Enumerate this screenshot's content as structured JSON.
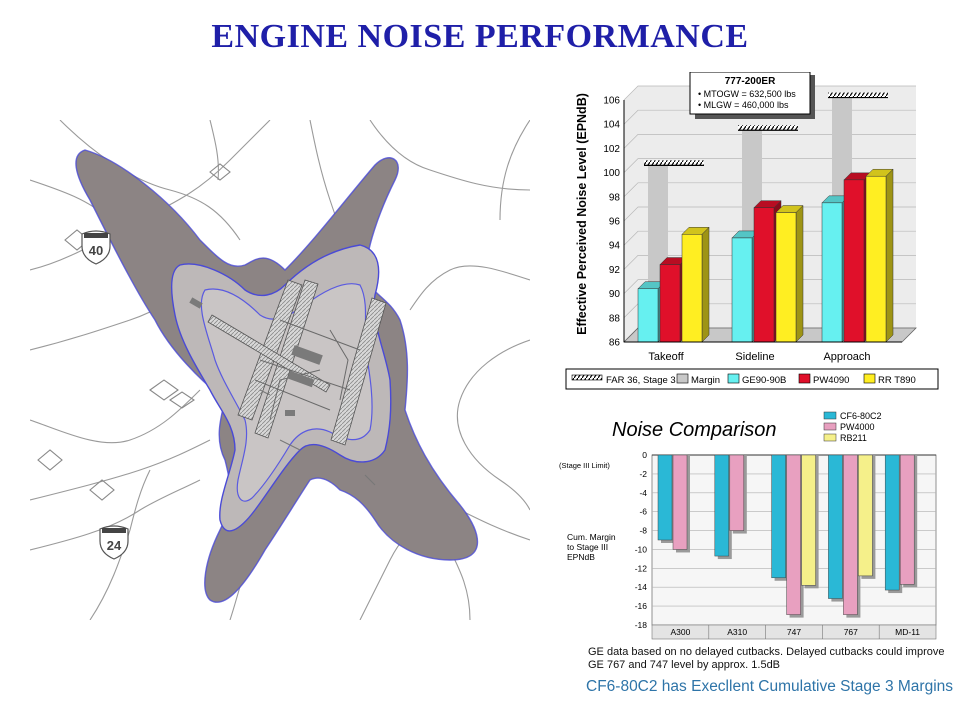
{
  "page": {
    "title": "ENGINE NOISE PERFORMANCE",
    "footnote": "GE data based on no delayed cutbacks.  Delayed cutbacks could improve GE 767 and 747 level by approx. 1.5dB",
    "tagline": "CF6-80C2 has Execllent Cumulative Stage 3 Margins"
  },
  "map": {
    "route_shields": [
      "40",
      "24"
    ],
    "colors": {
      "contour_outer": "#8c8484",
      "contour_inner": "#bdb8b8",
      "contour_edge": "#4a4ad6"
    }
  },
  "chart_data": [
    {
      "type": "bar",
      "ylabel": "Effective Perceived Noise Level (EPNdB)",
      "ylim": [
        86,
        106
      ],
      "yticks": [
        86,
        88,
        90,
        92,
        94,
        96,
        98,
        100,
        102,
        104,
        106
      ],
      "categories": [
        "Takeoff",
        "Sideline",
        "Approach"
      ],
      "far36_limits": [
        100.6,
        103.5,
        106.2
      ],
      "series": [
        {
          "name": "GE90-90B",
          "color": "#66f0f0",
          "values": [
            90.4,
            94.6,
            97.5
          ]
        },
        {
          "name": "PW4090",
          "color": "#e0102a",
          "values": [
            92.4,
            97.1,
            99.4
          ]
        },
        {
          "name": "RR T890",
          "color": "#ffee22",
          "values": [
            94.9,
            96.7,
            99.7
          ]
        }
      ],
      "legend": [
        "FAR 36, Stage 3",
        "Margin",
        "GE90-90B",
        "PW4090",
        "RR T890"
      ],
      "legend_placement": "bottom",
      "annotation": {
        "title": "777-200ER",
        "lines": [
          "• MTOGW = 632,500 lbs",
          "• MLGW = 460,000 lbs"
        ]
      }
    },
    {
      "type": "bar",
      "title": "Noise Comparison",
      "ylabel": "Cum. Margin to Stage III EPNdB",
      "ylabel_lines": [
        "Cum. Margin",
        "to Stage III",
        "EPNdB"
      ],
      "zero_label": "(Stage III Limit)",
      "ylim": [
        -18,
        0
      ],
      "yticks": [
        0,
        -2,
        -4,
        -6,
        -8,
        -10,
        -12,
        -14,
        -16,
        -18
      ],
      "categories": [
        "A300",
        "A310",
        "747",
        "767",
        "MD-11"
      ],
      "series": [
        {
          "name": "CF6-80C2",
          "color": "#2ab8d6",
          "values": [
            -9.0,
            -10.7,
            -13.0,
            -15.2,
            -14.3
          ]
        },
        {
          "name": "PW4000",
          "color": "#e8a0c0",
          "values": [
            -10.0,
            -8.0,
            -16.9,
            -16.9,
            -13.7
          ]
        },
        {
          "name": "RB211",
          "color": "#f5f08a",
          "values": [
            null,
            null,
            -13.8,
            -12.8,
            null
          ]
        }
      ],
      "legend_placement": "top-right",
      "grid": true
    }
  ]
}
